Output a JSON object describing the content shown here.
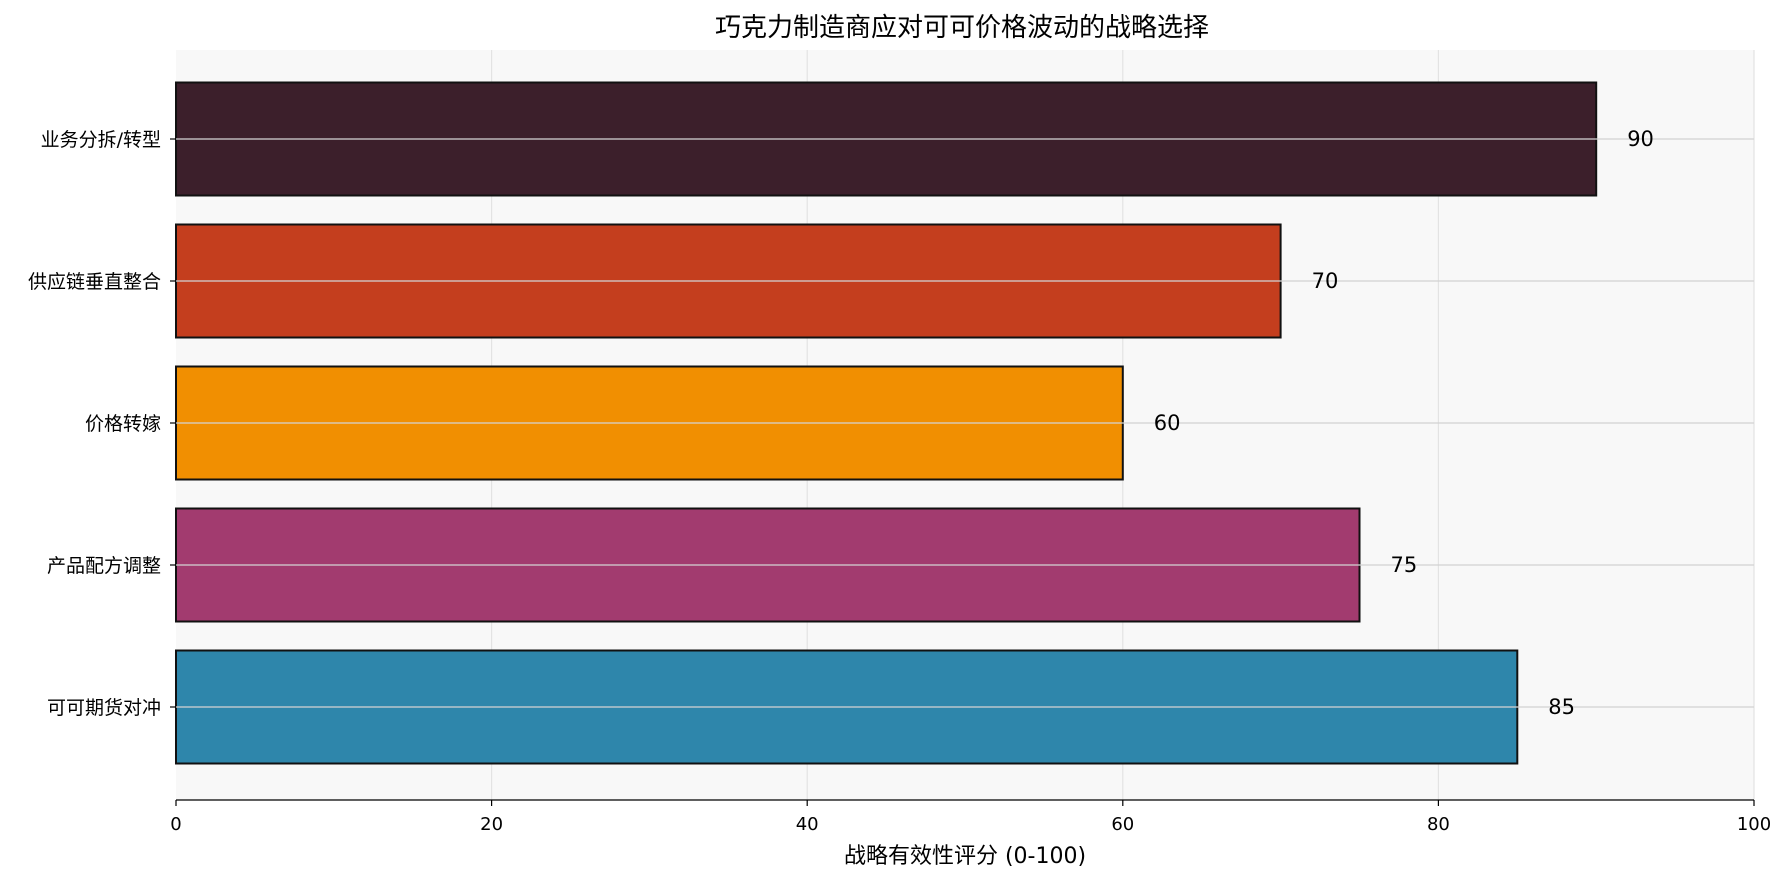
{
  "chart_data": {
    "type": "bar",
    "orientation": "horizontal",
    "title": "巧克力制造商应对可可价格波动的战略选择",
    "xlabel": "战略有效性评分 (0-100)",
    "ylabel": "",
    "xlim": [
      0,
      100
    ],
    "xticks": [
      0,
      20,
      40,
      60,
      80,
      100
    ],
    "grid": true,
    "categories": [
      "可可期货对冲",
      "产品配方调整",
      "价格转嫁",
      "供应链垂直整合",
      "业务分拆/转型"
    ],
    "values": [
      85,
      75,
      60,
      70,
      90
    ],
    "colors": [
      "#2e86ab",
      "#a23b6f",
      "#f18f01",
      "#c43e1e",
      "#3c1f2b"
    ]
  }
}
